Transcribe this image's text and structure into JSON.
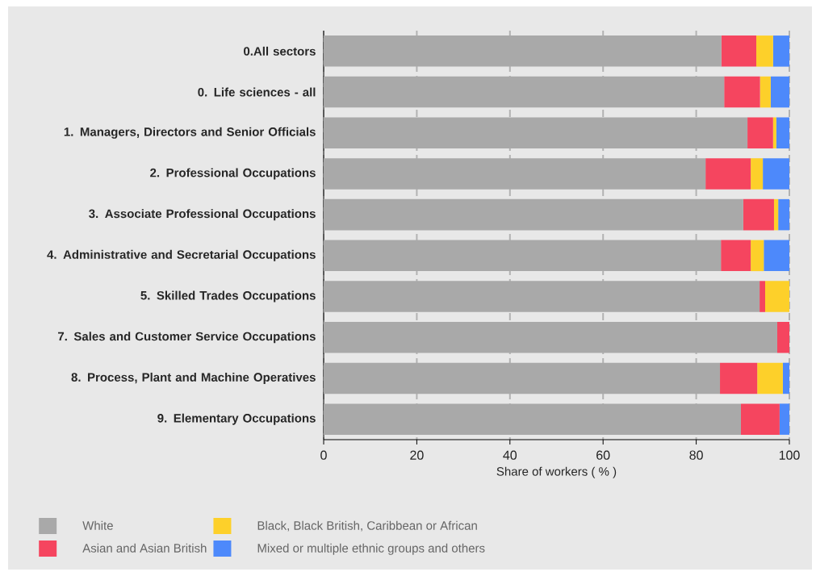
{
  "chart_data": {
    "type": "bar",
    "orientation": "horizontal",
    "stacked": true,
    "xlabel": "Share of workers ( % )",
    "categories": [
      "0.All sectors",
      "0. Life sciences - all",
      "1. Managers, Directors and Senior Officials",
      "2. Professional Occupations",
      "3. Associate Professional Occupations",
      "4. Administrative and Secretarial Occupations",
      "5. Skilled Trades Occupations",
      "7. Sales and Customer Service Occupations",
      "8. Process, Plant and Machine Operatives",
      "9. Elementary Occupations"
    ],
    "series": [
      {
        "name": "White",
        "color": "#a9a9a9",
        "values": [
          85.4,
          86.0,
          91.0,
          82.0,
          90.1,
          85.3,
          93.6,
          97.4,
          85.1,
          89.6
        ]
      },
      {
        "name": "Asian and Asian British",
        "color": "#f5455f",
        "values": [
          7.5,
          7.7,
          5.5,
          9.7,
          6.6,
          6.4,
          1.2,
          2.6,
          8.0,
          8.3
        ]
      },
      {
        "name": "Black, Black British, Caribbean or African",
        "color": "#fdd02a",
        "values": [
          3.6,
          2.3,
          0.7,
          2.6,
          0.9,
          2.8,
          5.2,
          0,
          5.5,
          0
        ]
      },
      {
        "name": "Mixed or multiple ethnic groups and others",
        "color": "#4d89fb",
        "values": [
          3.5,
          4.0,
          2.8,
          5.7,
          2.4,
          5.5,
          0,
          0,
          1.4,
          2.1
        ]
      }
    ],
    "xlim": [
      0,
      100
    ],
    "xticks": [
      0,
      20,
      40,
      60,
      80,
      100
    ],
    "grid": "x",
    "legend": "bottom left"
  }
}
